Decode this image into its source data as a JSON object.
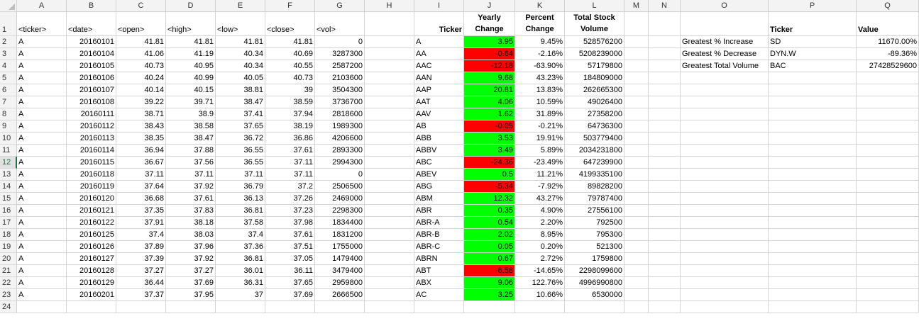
{
  "columns": [
    "A",
    "B",
    "C",
    "D",
    "E",
    "F",
    "G",
    "H",
    "I",
    "J",
    "K",
    "L",
    "M",
    "N",
    "O",
    "P",
    "Q"
  ],
  "header_row": {
    "A": "<ticker>",
    "B": "<date>",
    "C": "<open>",
    "D": "<high>",
    "E": "<low>",
    "F": "<close>",
    "G": "<vol>",
    "I": "Ticker",
    "J": "Yearly Change",
    "K": "Percent Change",
    "L": "Total Stock Volume",
    "P": "Ticker",
    "Q": "Value"
  },
  "raw_rows": [
    [
      "A",
      "20160101",
      "41.81",
      "41.81",
      "41.81",
      "41.81",
      "0"
    ],
    [
      "A",
      "20160104",
      "41.06",
      "41.19",
      "40.34",
      "40.69",
      "3287300"
    ],
    [
      "A",
      "20160105",
      "40.73",
      "40.95",
      "40.34",
      "40.55",
      "2587200"
    ],
    [
      "A",
      "20160106",
      "40.24",
      "40.99",
      "40.05",
      "40.73",
      "2103600"
    ],
    [
      "A",
      "20160107",
      "40.14",
      "40.15",
      "38.81",
      "39",
      "3504300"
    ],
    [
      "A",
      "20160108",
      "39.22",
      "39.71",
      "38.47",
      "38.59",
      "3736700"
    ],
    [
      "A",
      "20160111",
      "38.71",
      "38.9",
      "37.41",
      "37.94",
      "2818600"
    ],
    [
      "A",
      "20160112",
      "38.43",
      "38.58",
      "37.65",
      "38.19",
      "1989300"
    ],
    [
      "A",
      "20160113",
      "38.35",
      "38.47",
      "36.72",
      "36.86",
      "4206600"
    ],
    [
      "A",
      "20160114",
      "36.94",
      "37.88",
      "36.55",
      "37.61",
      "2893300"
    ],
    [
      "A",
      "20160115",
      "36.67",
      "37.56",
      "36.55",
      "37.11",
      "2994300"
    ],
    [
      "A",
      "20160118",
      "37.11",
      "37.11",
      "37.11",
      "37.11",
      "0"
    ],
    [
      "A",
      "20160119",
      "37.64",
      "37.92",
      "36.79",
      "37.2",
      "2506500"
    ],
    [
      "A",
      "20160120",
      "36.68",
      "37.61",
      "36.13",
      "37.26",
      "2469000"
    ],
    [
      "A",
      "20160121",
      "37.35",
      "37.83",
      "36.81",
      "37.23",
      "2298300"
    ],
    [
      "A",
      "20160122",
      "37.91",
      "38.18",
      "37.58",
      "37.98",
      "1834400"
    ],
    [
      "A",
      "20160125",
      "37.4",
      "38.03",
      "37.4",
      "37.61",
      "1831200"
    ],
    [
      "A",
      "20160126",
      "37.89",
      "37.96",
      "37.36",
      "37.51",
      "1755000"
    ],
    [
      "A",
      "20160127",
      "37.39",
      "37.92",
      "36.81",
      "37.05",
      "1479400"
    ],
    [
      "A",
      "20160128",
      "37.27",
      "37.27",
      "36.01",
      "36.11",
      "3479400"
    ],
    [
      "A",
      "20160129",
      "36.44",
      "37.69",
      "36.31",
      "37.65",
      "2959800"
    ],
    [
      "A",
      "20160201",
      "37.37",
      "37.95",
      "37",
      "37.69",
      "2666500"
    ]
  ],
  "summary_rows": [
    [
      "A",
      "3.95",
      "9.45%",
      "528576200"
    ],
    [
      "AA",
      "-0.64",
      "-2.16%",
      "5208239000"
    ],
    [
      "AAC",
      "-12.18",
      "-63.90%",
      "57179800"
    ],
    [
      "AAN",
      "9.68",
      "43.23%",
      "184809000"
    ],
    [
      "AAP",
      "20.81",
      "13.83%",
      "262665300"
    ],
    [
      "AAT",
      "4.06",
      "10.59%",
      "49026400"
    ],
    [
      "AAV",
      "1.62",
      "31.89%",
      "27358200"
    ],
    [
      "AB",
      "-0.05",
      "-0.21%",
      "64736300"
    ],
    [
      "ABB",
      "3.53",
      "19.91%",
      "503779400"
    ],
    [
      "ABBV",
      "3.49",
      "5.89%",
      "2034231800"
    ],
    [
      "ABC",
      "-24.36",
      "-23.49%",
      "647239900"
    ],
    [
      "ABEV",
      "0.5",
      "11.21%",
      "4199335100"
    ],
    [
      "ABG",
      "-5.34",
      "-7.92%",
      "89828200"
    ],
    [
      "ABM",
      "12.32",
      "43.27%",
      "79787400"
    ],
    [
      "ABR",
      "0.35",
      "4.90%",
      "27556100"
    ],
    [
      "ABR-A",
      "0.54",
      "2.20%",
      "792500"
    ],
    [
      "ABR-B",
      "2.02",
      "8.95%",
      "795300"
    ],
    [
      "ABR-C",
      "0.05",
      "0.20%",
      "521300"
    ],
    [
      "ABRN",
      "0.67",
      "2.72%",
      "1759800"
    ],
    [
      "ABT",
      "-6.58",
      "-14.65%",
      "2298099600"
    ],
    [
      "ABX",
      "9.06",
      "122.76%",
      "4996990800"
    ],
    [
      "AC",
      "3.25",
      "10.66%",
      "6530000"
    ]
  ],
  "greatest": [
    [
      "Greatest % Increase",
      "SD",
      "11670.00%"
    ],
    [
      "Greatest % Decrease",
      "DYN.W",
      "-89.36%"
    ],
    [
      "Greatest Total Volume",
      "BAC",
      "27428529600"
    ]
  ],
  "selected_row": 12,
  "colors": {
    "positive": "#00ff00",
    "negative": "#ff0000",
    "header_bg": "#f3f3f3",
    "grid": "#d4d4d4"
  }
}
